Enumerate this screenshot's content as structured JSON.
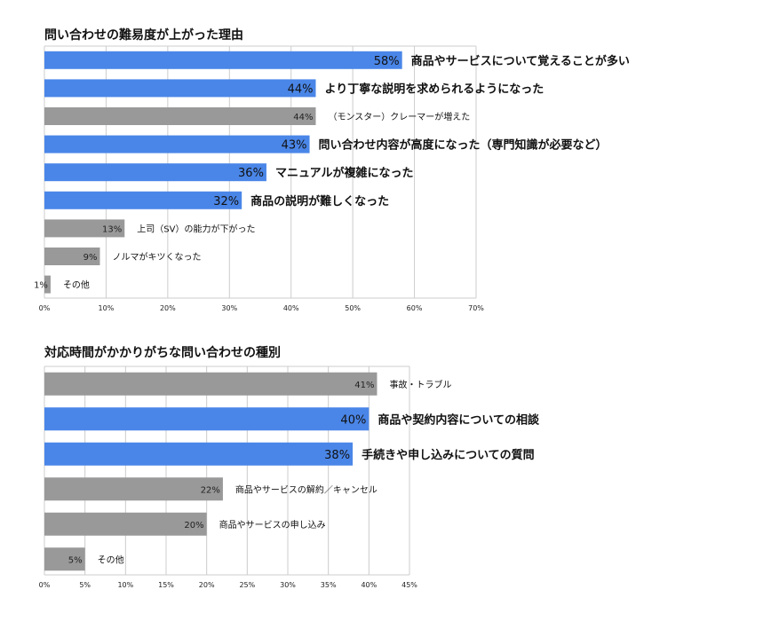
{
  "colors": {
    "highlight": "#4a86e8",
    "normal": "#999999",
    "grid": "#cccccc",
    "axis": "#999999"
  },
  "chart_data": [
    {
      "type": "bar",
      "orientation": "horizontal",
      "title": "問い合わせの難易度が上がった理由",
      "xlim": [
        0,
        70
      ],
      "ticks": [
        "0%",
        "10%",
        "20%",
        "30%",
        "40%",
        "50%",
        "60%",
        "70%"
      ],
      "grid": true,
      "categories": [
        "商品やサービスについて覚えることが多い",
        "より丁寧な説明を求められるようになった",
        "（モンスター）クレーマーが増えた",
        "問い合わせ内容が高度になった（専門知識が必要など）",
        "マニュアルが複雑になった",
        "商品の説明が難しくなった",
        "上司（SV）の能力が下がった",
        "ノルマがキツくなった",
        "その他"
      ],
      "values": [
        58,
        44,
        44,
        43,
        36,
        32,
        13,
        9,
        1
      ],
      "value_labels": [
        "58%",
        "44%",
        "44%",
        "43%",
        "36%",
        "32%",
        "13%",
        "9%",
        "1%"
      ],
      "highlighted": [
        true,
        true,
        false,
        true,
        true,
        true,
        false,
        false,
        false
      ]
    },
    {
      "type": "bar",
      "orientation": "horizontal",
      "title": "対応時間がかかりがちな問い合わせの種別",
      "xlim": [
        0,
        45
      ],
      "ticks": [
        "0%",
        "5%",
        "10%",
        "15%",
        "20%",
        "25%",
        "30%",
        "35%",
        "40%",
        "45%"
      ],
      "grid": true,
      "categories": [
        "事故・トラブル",
        "商品や契約内容についての相談",
        "手続きや申し込みについての質問",
        "商品やサービスの解約／キャンセル",
        "商品やサービスの申し込み",
        "その他"
      ],
      "values": [
        41,
        40,
        38,
        22,
        20,
        5
      ],
      "value_labels": [
        "41%",
        "40%",
        "38%",
        "22%",
        "20%",
        "5%"
      ],
      "highlighted": [
        false,
        true,
        true,
        false,
        false,
        false
      ]
    }
  ]
}
